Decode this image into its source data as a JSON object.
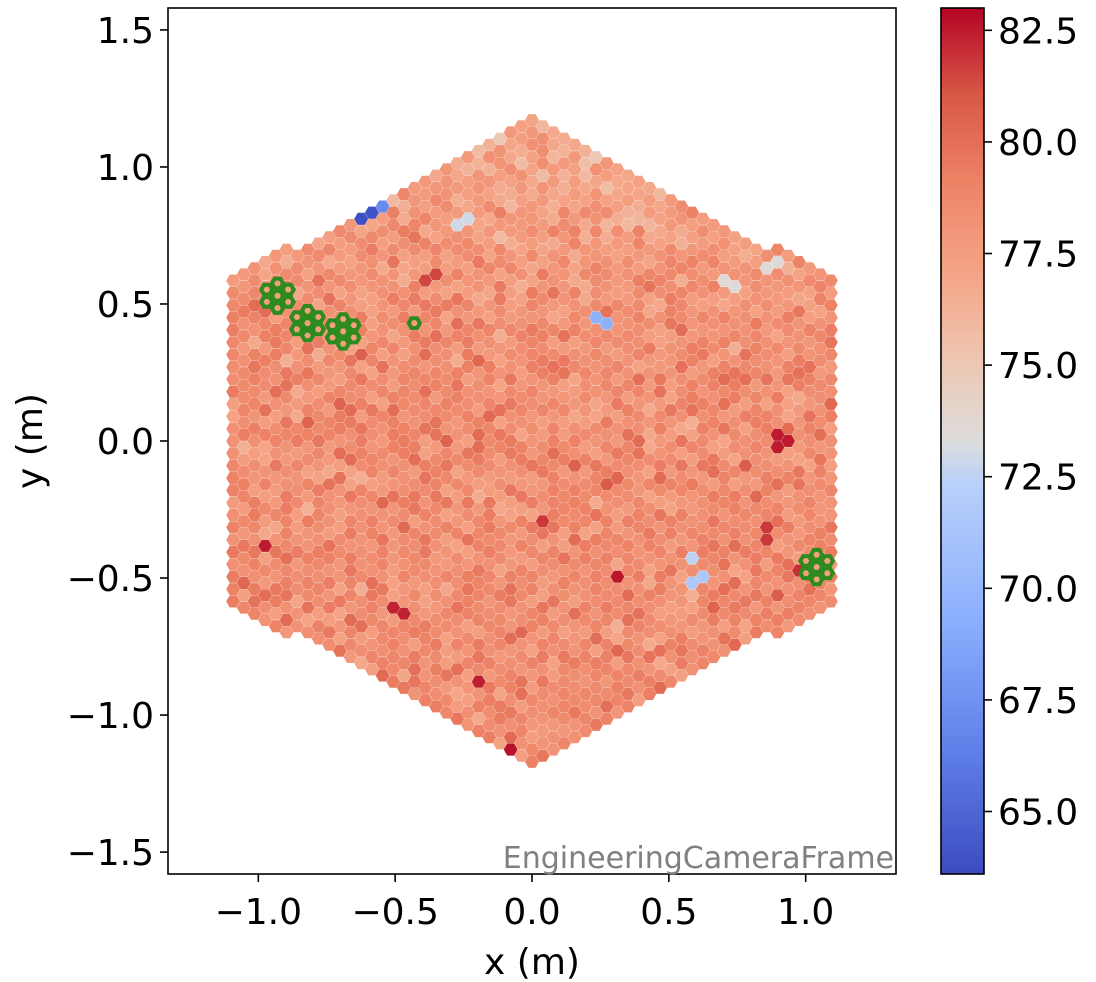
{
  "chart_data": {
    "type": "heatmap",
    "subtype": "hexagonal camera pixel map",
    "title": "",
    "xlabel": "x  (m)",
    "ylabel": "y  (m)",
    "frame_label": "EngineeringCameraFrame",
    "xlim": [
      -1.33,
      1.33
    ],
    "ylim": [
      -1.58,
      1.58
    ],
    "x_ticks": [
      -1.0,
      -0.5,
      0.0,
      0.5,
      1.0
    ],
    "x_tick_labels": [
      "−1.0",
      "−0.5",
      "0.0",
      "0.5",
      "1.0"
    ],
    "y_ticks": [
      1.5,
      1.0,
      0.5,
      0.0,
      -0.5,
      -1.0,
      -1.5
    ],
    "y_tick_labels": [
      "1.5",
      "1.0",
      "0.5",
      "0.0",
      "−0.5",
      "−1.0",
      "−1.5"
    ],
    "colormap": "coolwarm",
    "color_range": [
      63.6,
      83.0
    ],
    "colorbar_ticks": [
      82.5,
      80.0,
      77.5,
      75.0,
      72.5,
      70.0,
      67.5,
      65.0
    ],
    "colorbar_tick_labels": [
      "82.5",
      "80.0",
      "77.5",
      "75.0",
      "72.5",
      "70.0",
      "67.5",
      "65.0"
    ],
    "camera_extent": {
      "x": [
        -1.1,
        1.1
      ],
      "y": [
        -1.18,
        1.18
      ]
    },
    "typical_value": 78.5,
    "value_spread": 2.0,
    "highlighted_pixels": [
      {
        "x": -0.93,
        "y": 0.53
      },
      {
        "x": -0.82,
        "y": 0.43
      },
      {
        "x": -0.69,
        "y": 0.4
      },
      {
        "x": -0.43,
        "y": 0.43
      },
      {
        "x": 1.04,
        "y": -0.46
      }
    ],
    "low_value_pixels": [
      {
        "x": -0.6,
        "y": 0.9,
        "value": 66.5
      },
      {
        "x": -0.63,
        "y": 0.86,
        "value": 68.5
      },
      {
        "x": -0.58,
        "y": 0.84,
        "value": 64.0
      },
      {
        "x": -0.62,
        "y": 0.82,
        "value": 63.8
      },
      {
        "x": -0.53,
        "y": 0.85,
        "value": 67.0
      },
      {
        "x": 0.25,
        "y": 0.43,
        "value": 69.5
      },
      {
        "x": 0.58,
        "y": -0.42,
        "value": 72.5
      },
      {
        "x": 0.6,
        "y": -0.5,
        "value": 71.5
      },
      {
        "x": -0.25,
        "y": 0.8,
        "value": 73.0
      },
      {
        "x": 0.88,
        "y": 0.64,
        "value": 73.5
      },
      {
        "x": 0.72,
        "y": 0.57,
        "value": 73.5
      }
    ],
    "high_value_pixels": [
      {
        "x": -0.98,
        "y": -0.38,
        "value": 82.5
      },
      {
        "x": -0.48,
        "y": -0.61,
        "value": 82.3
      },
      {
        "x": 0.31,
        "y": -0.5,
        "value": 82.6
      },
      {
        "x": -0.08,
        "y": -1.13,
        "value": 82.7
      },
      {
        "x": -0.2,
        "y": -0.89,
        "value": 82.4
      },
      {
        "x": 0.91,
        "y": 0.0,
        "value": 82.5
      },
      {
        "x": 0.97,
        "y": -0.48,
        "value": 82.0
      },
      {
        "x": 0.85,
        "y": -0.34,
        "value": 81.8
      },
      {
        "x": 0.05,
        "y": -0.28,
        "value": 81.8
      },
      {
        "x": -0.37,
        "y": 0.6,
        "value": 81.5
      }
    ]
  }
}
